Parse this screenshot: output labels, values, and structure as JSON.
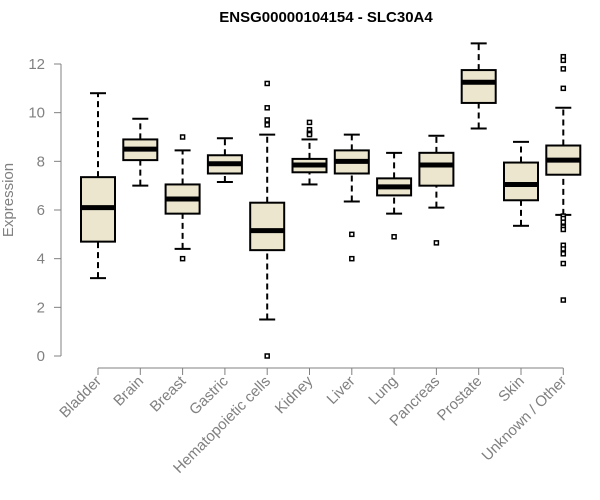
{
  "chart_data": {
    "type": "boxplot",
    "title": "ENSG00000104154 - SLC30A4",
    "xlabel": "",
    "ylabel": "Expression",
    "ylim": [
      0,
      12
    ],
    "yticks": [
      0,
      2,
      4,
      6,
      8,
      10,
      12
    ],
    "grid": false,
    "legend": "none",
    "colors": {
      "box_fill": "#ece6cf",
      "stroke": "#000000",
      "axis": "#808080",
      "text": "#808080"
    },
    "categories": [
      "Bladder",
      "Brain",
      "Breast",
      "Gastric",
      "Hematopoietic cells",
      "Kidney",
      "Liver",
      "Lung",
      "Pancreas",
      "Prostate",
      "Skin",
      "Unknown / Other"
    ],
    "boxes": [
      {
        "min": 3.2,
        "q1": 4.7,
        "median": 6.1,
        "q3": 7.35,
        "max": 10.8,
        "outliers": []
      },
      {
        "min": 7.0,
        "q1": 8.05,
        "median": 8.5,
        "q3": 8.9,
        "max": 9.75,
        "outliers": []
      },
      {
        "min": 4.4,
        "q1": 5.85,
        "median": 6.45,
        "q3": 7.05,
        "max": 8.45,
        "outliers": [
          9.0,
          4.0
        ]
      },
      {
        "min": 7.15,
        "q1": 7.5,
        "median": 7.9,
        "q3": 8.25,
        "max": 8.95,
        "outliers": []
      },
      {
        "min": 1.5,
        "q1": 4.35,
        "median": 5.15,
        "q3": 6.3,
        "max": 9.1,
        "outliers": [
          11.2,
          10.2,
          9.7,
          9.5,
          0.0
        ]
      },
      {
        "min": 7.05,
        "q1": 7.55,
        "median": 7.85,
        "q3": 8.1,
        "max": 8.9,
        "outliers": [
          9.6,
          9.3,
          9.15,
          9.1
        ]
      },
      {
        "min": 6.35,
        "q1": 7.5,
        "median": 8.0,
        "q3": 8.45,
        "max": 9.1,
        "outliers": [
          5.0,
          4.0
        ]
      },
      {
        "min": 5.85,
        "q1": 6.6,
        "median": 6.95,
        "q3": 7.3,
        "max": 8.35,
        "outliers": [
          4.9
        ]
      },
      {
        "min": 6.1,
        "q1": 7.0,
        "median": 7.85,
        "q3": 8.35,
        "max": 9.05,
        "outliers": [
          4.65
        ]
      },
      {
        "min": 9.35,
        "q1": 10.4,
        "median": 11.25,
        "q3": 11.75,
        "max": 12.85,
        "outliers": []
      },
      {
        "min": 5.35,
        "q1": 6.4,
        "median": 7.05,
        "q3": 7.95,
        "max": 8.8,
        "outliers": []
      },
      {
        "min": 5.8,
        "q1": 7.45,
        "median": 8.05,
        "q3": 8.65,
        "max": 10.2,
        "outliers": [
          12.3,
          12.15,
          11.8,
          11.0,
          5.75,
          5.65,
          5.5,
          5.3,
          5.2,
          4.55,
          4.4,
          4.2,
          3.8,
          2.3
        ]
      }
    ]
  }
}
